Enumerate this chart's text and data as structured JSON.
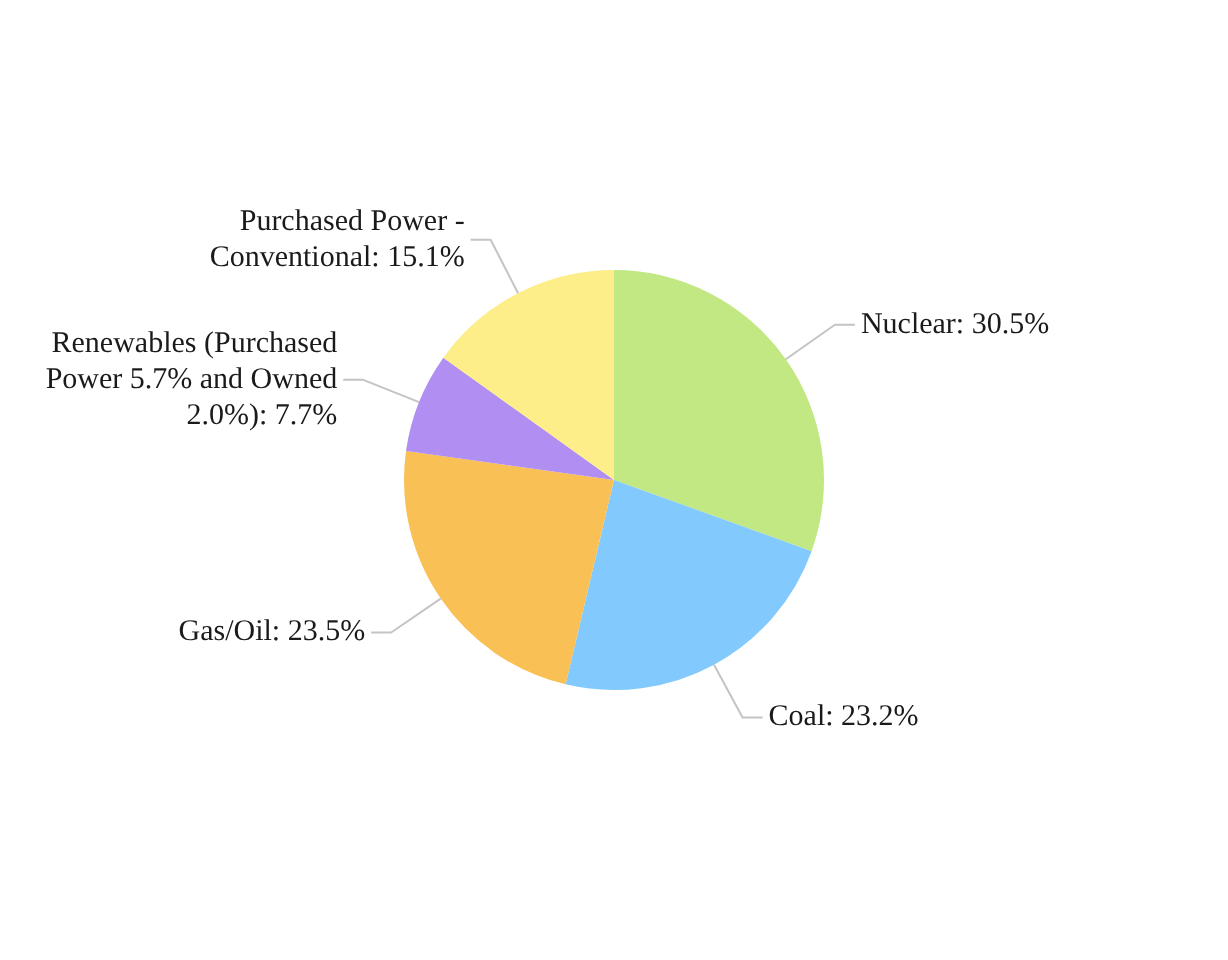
{
  "chart_data": {
    "type": "pie",
    "categories": [
      "Nuclear",
      "Coal",
      "Gas/Oil",
      "Renewables (Purchased Power 5.7% and Owned 2.0%)",
      "Purchased Power - Conventional"
    ],
    "values": [
      30.5,
      23.2,
      23.5,
      7.7,
      15.1
    ],
    "value_labels": [
      "30.5%",
      "23.2%",
      "23.5%",
      "7.7%",
      "15.1%"
    ],
    "colors": [
      "#c1e883",
      "#82c9fd",
      "#f9c055",
      "#b18ef1",
      "#fdee8a"
    ]
  }
}
